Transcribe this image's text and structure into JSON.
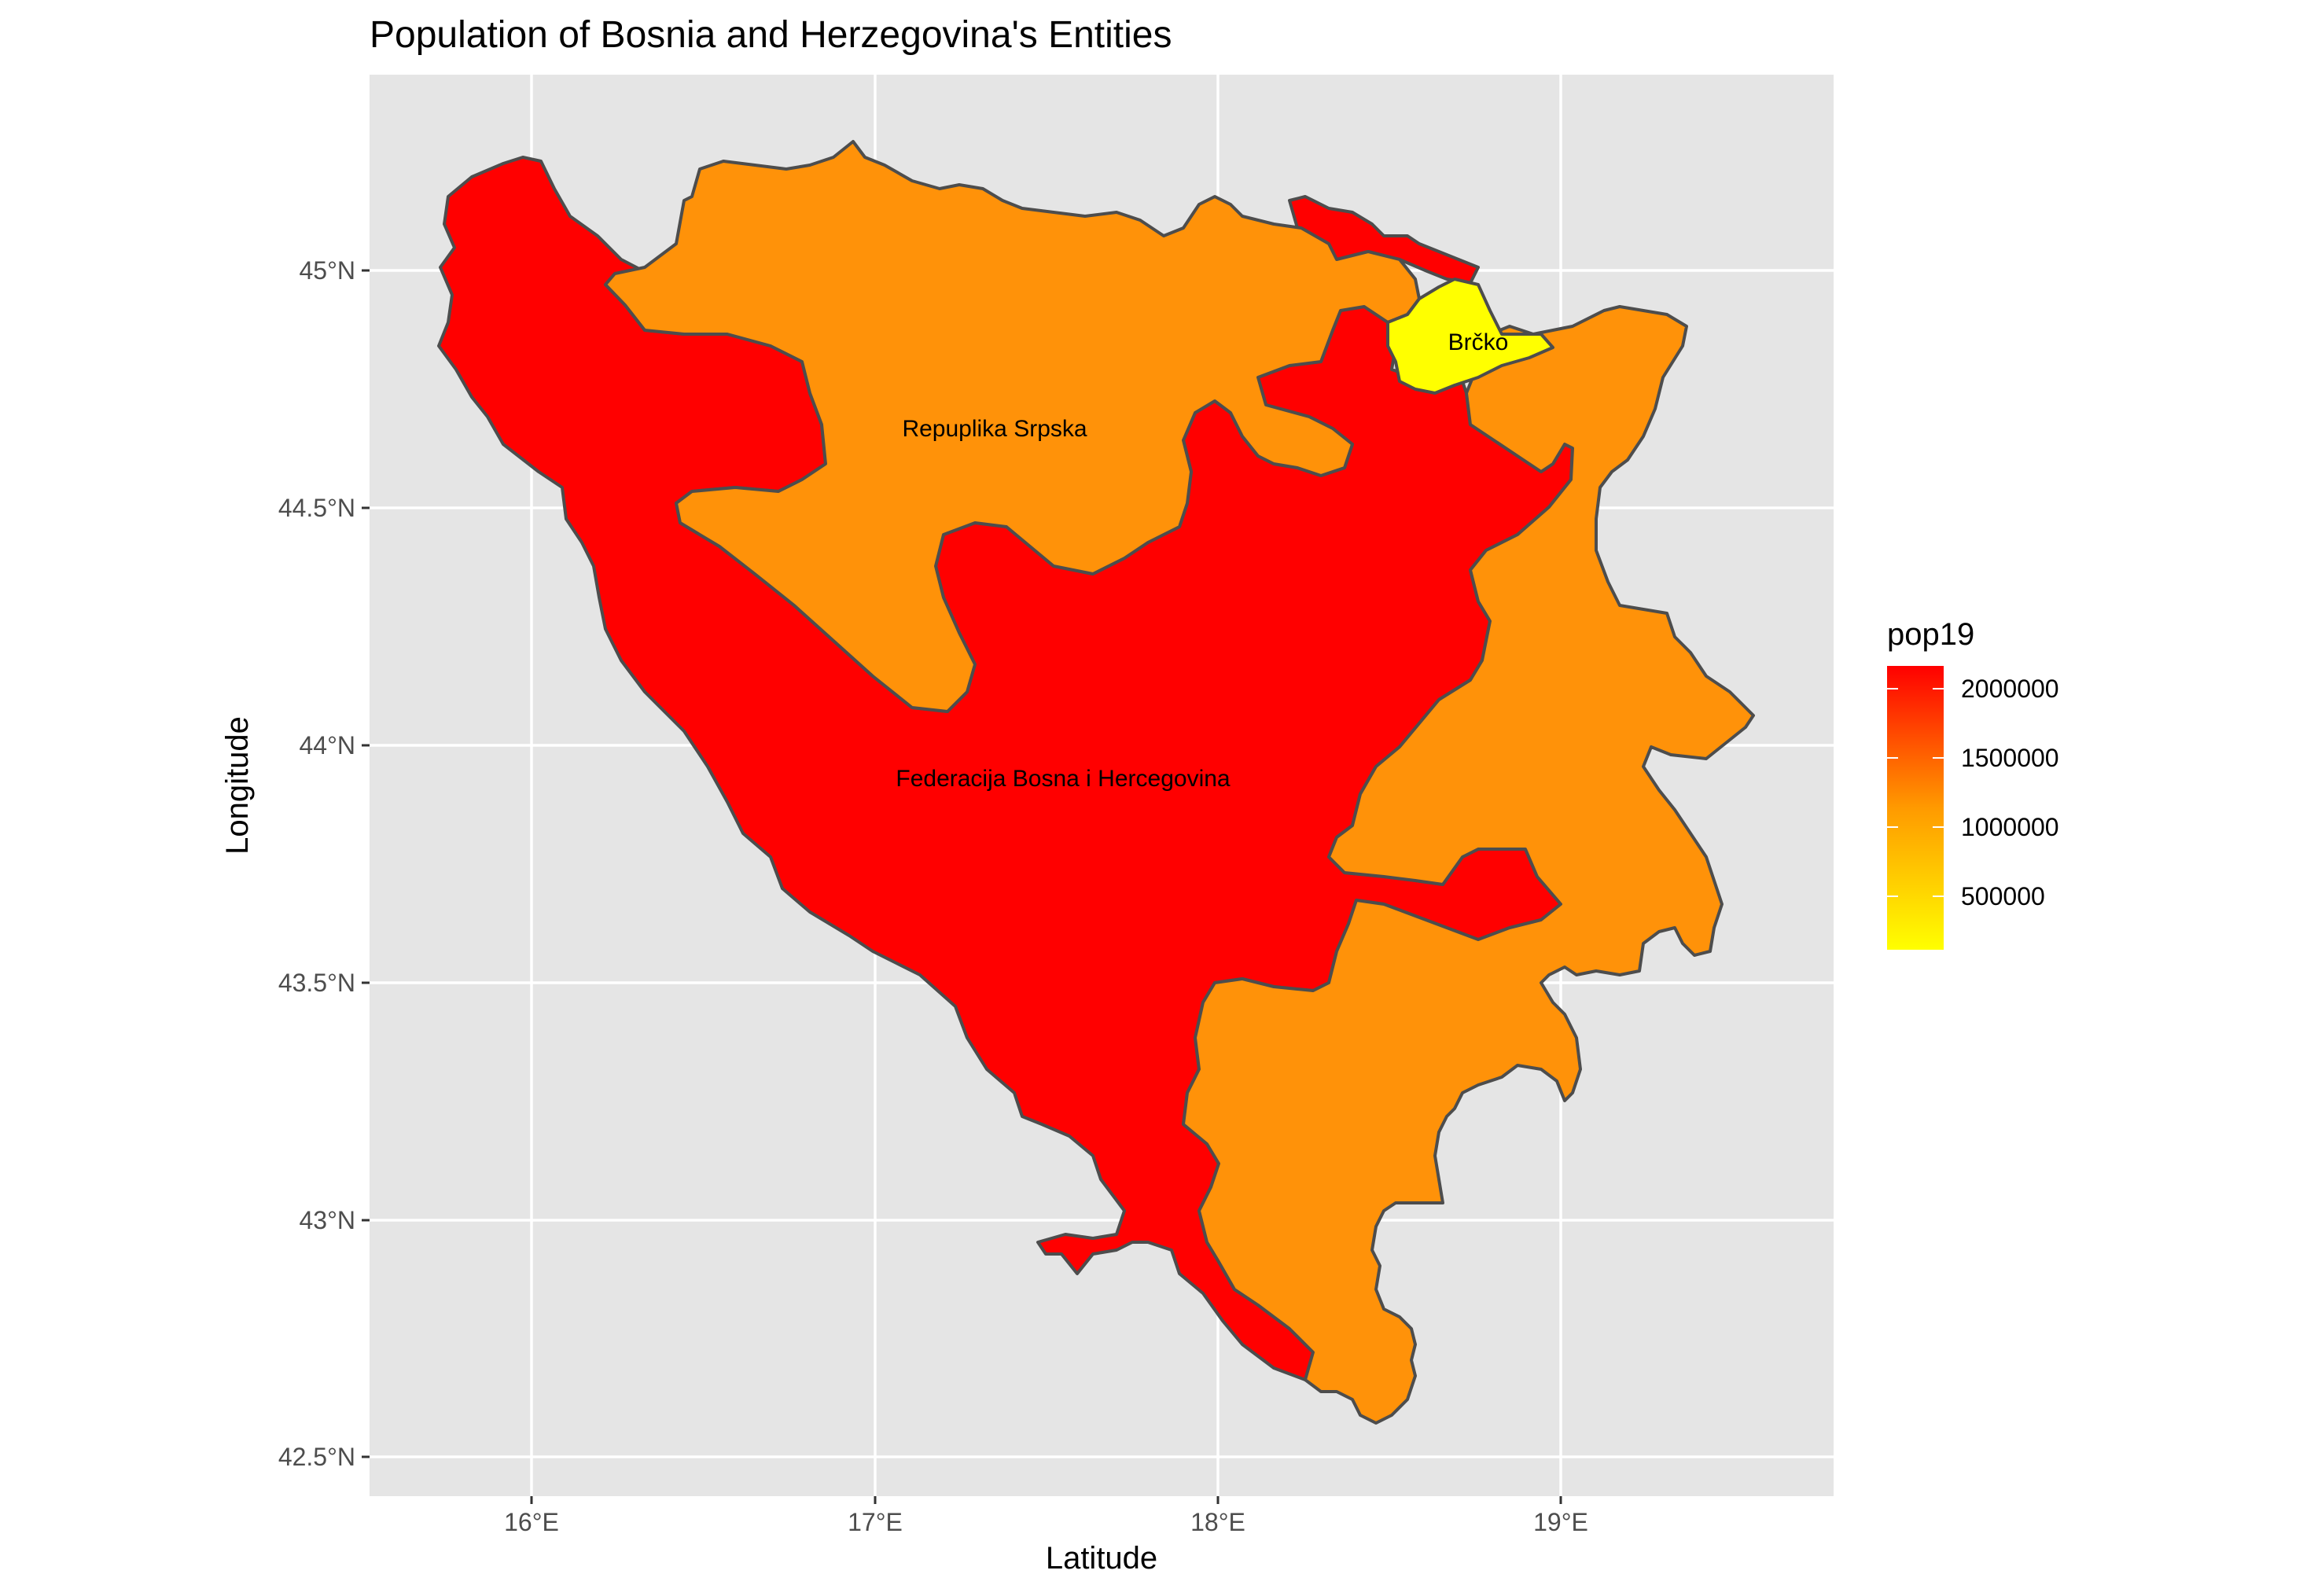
{
  "title": "Population of Bosnia and Herzegovina's Entities",
  "xlabel": "Latitude",
  "ylabel": "Longitude",
  "x_ticks": [
    "16°E",
    "17°E",
    "18°E",
    "19°E"
  ],
  "y_ticks": [
    "45°N",
    "44.5°N",
    "44°N",
    "43.5°N",
    "43°N",
    "42.5°N"
  ],
  "regions": [
    {
      "name": "Repuplika Srpska",
      "pop19": 1150000,
      "color": "#FF9209"
    },
    {
      "name": "Federacija Bosna i Hercegovina",
      "pop19": 2200000,
      "color": "#FF0000"
    },
    {
      "name": "Brčko",
      "pop19": 83000,
      "color": "#FFFF00"
    }
  ],
  "legend": {
    "title": "pop19",
    "labels": [
      "2000000",
      "1500000",
      "1000000",
      "500000"
    ],
    "colors": {
      "low": "#FFFF00",
      "high": "#FF0000"
    }
  },
  "chart_data": {
    "type": "map",
    "title": "Population of Bosnia and Herzegovina's Entities",
    "xlabel": "Latitude",
    "ylabel": "Longitude",
    "xlim": [
      15.55,
      19.8
    ],
    "ylim": [
      42.45,
      45.35
    ],
    "grid": true,
    "legend_position": "right",
    "fill_variable": "pop19",
    "series": [
      {
        "name": "Repuplika Srpska",
        "value": 1150000
      },
      {
        "name": "Federacija Bosna i Hercegovina",
        "value": 2200000
      },
      {
        "name": "Brčko",
        "value": 83000
      }
    ]
  }
}
